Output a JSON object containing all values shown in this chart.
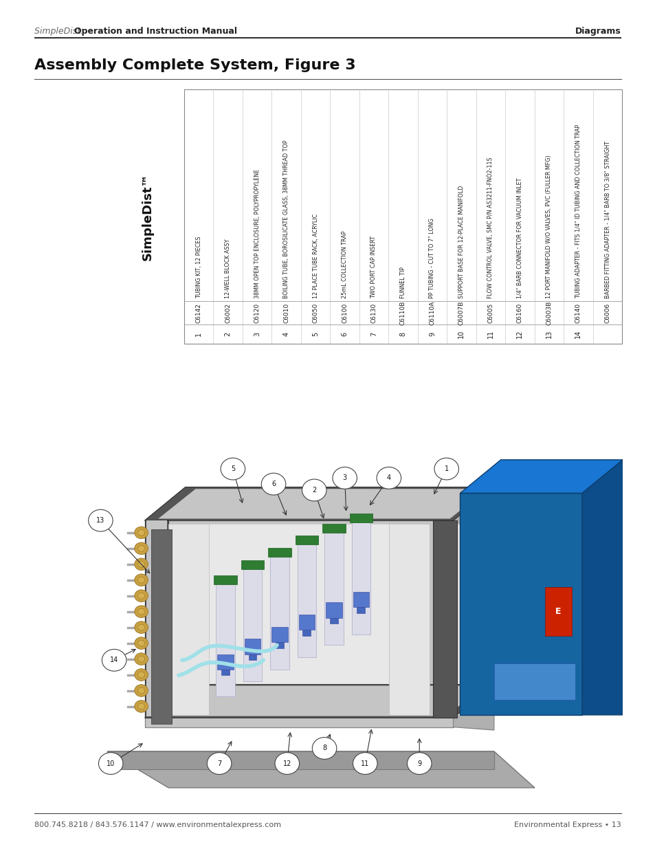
{
  "page_bg": "#ffffff",
  "header_normal": "SimpleDist: ",
  "header_bold": "Operation and Instruction Manual",
  "header_right": "Diagrams",
  "title": "Assembly Complete System, Figure 3",
  "footer_left": "800.745.8218 / 843.576.1147 / www.environmentalexpress.com",
  "footer_right": "Environmental Express • 13",
  "simpledist_label": "SimpleDist™",
  "table_items": [
    {
      "num": "1",
      "code": "C6142",
      "desc": "TUBING KIT, 12 PIECES"
    },
    {
      "num": "2",
      "code": "C6002",
      "desc": "12-WELL BLOCK ASSY"
    },
    {
      "num": "3",
      "code": "C6120",
      "desc": "38MM OPEN TOP ENCLOSURE, POLYPROPYLENE"
    },
    {
      "num": "4",
      "code": "C6010",
      "desc": "BOILING TUBE, BOROSILICATE GLASS, 38MM THREAD TOP"
    },
    {
      "num": "5",
      "code": "C6050",
      "desc": "12 PLACE TUBE RACK, ACRYLIC"
    },
    {
      "num": "6",
      "code": "C6100",
      "desc": "25mL COLLECTION TRAP"
    },
    {
      "num": "7",
      "code": "C6130",
      "desc": "TWO PORT CAP INSERT"
    },
    {
      "num": "8",
      "code": "C6110B",
      "desc": "FUNNEL TIP"
    },
    {
      "num": "9",
      "code": "C6110A",
      "desc": "PP TUBING - CUT TO 7\" LONG"
    },
    {
      "num": "10",
      "code": "C6007B",
      "desc": "SUPPORT BASE FOR 12-PLACE MANIFOLD"
    },
    {
      "num": "11",
      "code": "C6005",
      "desc": "FLOW CONTROL VALVE, SMC P/N AS3211-FNO2-11S"
    },
    {
      "num": "12",
      "code": "C6160",
      "desc": "1/4\" BARB CONNECTOR FOR VACUUM INLET"
    },
    {
      "num": "13",
      "code": "C6003B",
      "desc": "12 PORT MANIFOLD W/O VALVES, PVC (FULLER MFG)"
    },
    {
      "num": "14",
      "code": "C6140",
      "desc": "TUBING ADAPTER - FITS 1/4\" ID TUBING AND COLLECTION TRAP"
    },
    {
      "num": "",
      "code": "C6006",
      "desc": "BARBED FITTING ADAPTER - 1/4\" BARB TO 3/8\" STRAIGHT"
    }
  ],
  "header_font_size": 9,
  "title_font_size": 16,
  "table_num_font_size": 7,
  "table_code_font_size": 6.5,
  "table_desc_font_size": 5.8,
  "footer_font_size": 8,
  "simpledist_font_size": 13,
  "callout_font_size": 7
}
